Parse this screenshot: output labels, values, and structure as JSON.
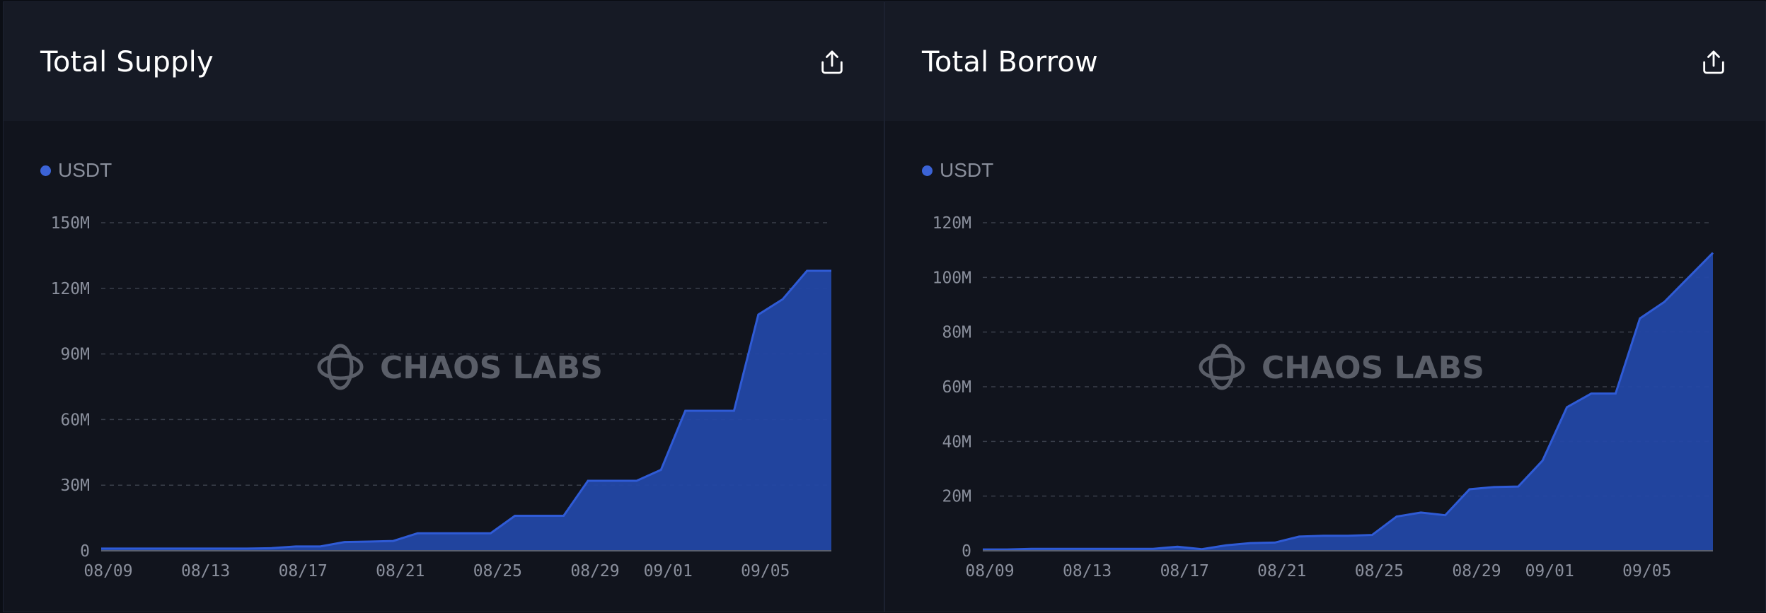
{
  "colors": {
    "series": "#2347a5",
    "series_line": "#2f5bd6",
    "legend_dot": "#3b63d6",
    "grid": "#3a3f4b"
  },
  "panels": [
    {
      "title": "Total Supply",
      "export_icon": "share-upload-icon",
      "legend": "USDT",
      "watermark": "CHAOS LABS",
      "chart_data": {
        "type": "area",
        "title": "Total Supply",
        "xlabel": "",
        "ylabel": "",
        "series": [
          {
            "name": "USDT",
            "x": [
              "08/09",
              "08/10",
              "08/11",
              "08/12",
              "08/13",
              "08/14",
              "08/15",
              "08/16",
              "08/17",
              "08/18",
              "08/19",
              "08/20",
              "08/21",
              "08/22",
              "08/23",
              "08/24",
              "08/25",
              "08/26",
              "08/27",
              "08/28",
              "08/29",
              "08/30",
              "08/31",
              "09/01",
              "09/02",
              "09/03",
              "09/04",
              "09/05",
              "09/06",
              "09/07",
              "09/08"
            ],
            "values": [
              1,
              1,
              1,
              1,
              1,
              1,
              1,
              1.2,
              2,
              2,
              4,
              4.2,
              4.5,
              8,
              8,
              8,
              8,
              16,
              16,
              16,
              32,
              32,
              32,
              37,
              64,
              64,
              64,
              108,
              115,
              128,
              128
            ]
          }
        ],
        "unit": "M",
        "ylim": [
          0,
          150
        ],
        "yticks": [
          "0",
          "30M",
          "60M",
          "90M",
          "120M",
          "150M"
        ],
        "xticks": [
          "08/09",
          "08/13",
          "08/17",
          "08/21",
          "08/25",
          "08/29",
          "09/01",
          "09/05"
        ],
        "grid": true,
        "legend_position": "top-left"
      }
    },
    {
      "title": "Total Borrow",
      "export_icon": "share-upload-icon",
      "legend": "USDT",
      "watermark": "CHAOS LABS",
      "chart_data": {
        "type": "area",
        "title": "Total Borrow",
        "xlabel": "",
        "ylabel": "",
        "series": [
          {
            "name": "USDT",
            "x": [
              "08/09",
              "08/10",
              "08/11",
              "08/12",
              "08/13",
              "08/14",
              "08/15",
              "08/16",
              "08/17",
              "08/18",
              "08/19",
              "08/20",
              "08/21",
              "08/22",
              "08/23",
              "08/24",
              "08/25",
              "08/26",
              "08/27",
              "08/28",
              "08/29",
              "08/30",
              "08/31",
              "09/01",
              "09/02",
              "09/03",
              "09/04",
              "09/05",
              "09/06",
              "09/07",
              "09/08"
            ],
            "values": [
              0.5,
              0.5,
              0.7,
              0.7,
              0.7,
              0.7,
              0.7,
              0.7,
              1.5,
              0.6,
              2,
              2.8,
              3,
              5.2,
              5.5,
              5.5,
              5.8,
              12.5,
              14,
              13,
              22.5,
              23.3,
              23.5,
              33,
              52.5,
              57.5,
              57.5,
              85,
              91,
              100,
              109
            ]
          }
        ],
        "unit": "M",
        "ylim": [
          0,
          120
        ],
        "yticks": [
          "0",
          "20M",
          "40M",
          "60M",
          "80M",
          "100M",
          "120M"
        ],
        "xticks": [
          "08/09",
          "08/13",
          "08/17",
          "08/21",
          "08/25",
          "08/29",
          "09/01",
          "09/05"
        ],
        "grid": true,
        "legend_position": "top-left"
      }
    }
  ]
}
